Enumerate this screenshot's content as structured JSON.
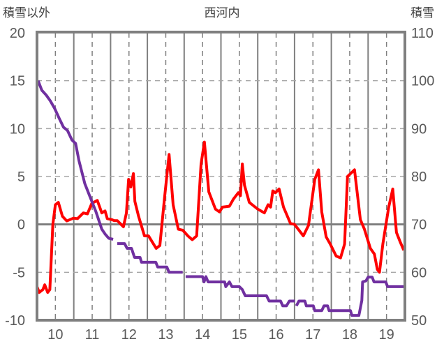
{
  "chart_data": {
    "type": "line",
    "title": "西河内",
    "ylabel_left": "積雪以外",
    "ylabel_right": "積雪",
    "xlim": [
      9.5,
      19.5
    ],
    "ylim_left": [
      -10,
      20
    ],
    "ylim_right": [
      50,
      110
    ],
    "x_ticks": [
      "10",
      "11",
      "12",
      "13",
      "14",
      "15",
      "16",
      "17",
      "18",
      "19"
    ],
    "x_tick_values": [
      10,
      11,
      12,
      13,
      14,
      15,
      16,
      17,
      18,
      19
    ],
    "y_ticks_left": [
      "20",
      "15",
      "10",
      "5",
      "0",
      "-5",
      "-10"
    ],
    "y_tick_left_values": [
      20,
      15,
      10,
      5,
      0,
      -5,
      -10
    ],
    "y_ticks_right": [
      "110",
      "100",
      "90",
      "80",
      "70",
      "60",
      "50"
    ],
    "y_tick_right_values": [
      110,
      100,
      90,
      80,
      70,
      60,
      50
    ],
    "grid": true,
    "series": [
      {
        "name": "積雪以外",
        "axis": "left",
        "color": "#ff0000",
        "points": [
          [
            9.5,
            -6.5
          ],
          [
            9.56,
            -7.1
          ],
          [
            9.66,
            -6.8
          ],
          [
            9.71,
            -6.3
          ],
          [
            9.79,
            -7.1
          ],
          [
            9.85,
            -6.8
          ],
          [
            9.93,
            0
          ],
          [
            10.0,
            2.05
          ],
          [
            10.08,
            2.3
          ],
          [
            10.19,
            0.85
          ],
          [
            10.31,
            0.36
          ],
          [
            10.49,
            0.65
          ],
          [
            10.6,
            0.6
          ],
          [
            10.76,
            1.2
          ],
          [
            10.87,
            1.1
          ],
          [
            10.99,
            2.2
          ],
          [
            11.14,
            2.5
          ],
          [
            11.26,
            1.2
          ],
          [
            11.35,
            1.4
          ],
          [
            11.41,
            0.6
          ],
          [
            11.53,
            0.5
          ],
          [
            11.6,
            0.4
          ],
          [
            11.68,
            0.4
          ],
          [
            11.85,
            -0.25
          ],
          [
            11.93,
            1.2
          ],
          [
            11.99,
            4.7
          ],
          [
            12.05,
            3.9
          ],
          [
            12.12,
            5.3
          ],
          [
            12.16,
            2.4
          ],
          [
            12.26,
            0.85
          ],
          [
            12.42,
            -1.2
          ],
          [
            12.53,
            -1.2
          ],
          [
            12.74,
            -2.5
          ],
          [
            12.84,
            -2.2
          ],
          [
            12.96,
            2.5
          ],
          [
            13.09,
            7.3
          ],
          [
            13.2,
            2.05
          ],
          [
            13.34,
            -0.5
          ],
          [
            13.46,
            -0.6
          ],
          [
            13.6,
            -1.2
          ],
          [
            13.72,
            -1.6
          ],
          [
            13.84,
            -1.2
          ],
          [
            13.96,
            6.3
          ],
          [
            14.05,
            8.6
          ],
          [
            14.17,
            3.4
          ],
          [
            14.35,
            1.6
          ],
          [
            14.46,
            1.3
          ],
          [
            14.54,
            1.8
          ],
          [
            14.73,
            1.9
          ],
          [
            14.84,
            2.65
          ],
          [
            14.97,
            3.3
          ],
          [
            15.03,
            3.0
          ],
          [
            15.08,
            6.3
          ],
          [
            15.14,
            4.1
          ],
          [
            15.27,
            2.3
          ],
          [
            15.35,
            2.05
          ],
          [
            15.5,
            1.6
          ],
          [
            15.68,
            1.2
          ],
          [
            15.78,
            2.05
          ],
          [
            15.85,
            1.8
          ],
          [
            15.91,
            3.5
          ],
          [
            15.98,
            3.3
          ],
          [
            16.08,
            3.7
          ],
          [
            16.2,
            1.8
          ],
          [
            16.39,
            0.1
          ],
          [
            16.5,
            0
          ],
          [
            16.62,
            -0.6
          ],
          [
            16.74,
            -1.2
          ],
          [
            16.88,
            -0.1
          ],
          [
            17.05,
            4.7
          ],
          [
            17.15,
            5.7
          ],
          [
            17.24,
            1.3
          ],
          [
            17.36,
            -1.3
          ],
          [
            17.47,
            -2.05
          ],
          [
            17.63,
            -3.3
          ],
          [
            17.75,
            -3.5
          ],
          [
            17.86,
            -2.05
          ],
          [
            17.94,
            5.0
          ],
          [
            18.13,
            5.7
          ],
          [
            18.29,
            0.5
          ],
          [
            18.4,
            -0.5
          ],
          [
            18.56,
            -2.5
          ],
          [
            18.67,
            -3.1
          ],
          [
            18.75,
            -4.7
          ],
          [
            18.81,
            -5.0
          ],
          [
            18.9,
            -2.05
          ],
          [
            19.06,
            1.8
          ],
          [
            19.17,
            3.7
          ],
          [
            19.27,
            -0.85
          ],
          [
            19.37,
            -1.8
          ],
          [
            19.47,
            -2.7
          ]
        ]
      },
      {
        "name": "積雪",
        "axis": "right",
        "color": "#7030a0",
        "points": [
          [
            9.53,
            100
          ],
          [
            9.63,
            98
          ],
          [
            9.75,
            97
          ],
          [
            9.86,
            95.8
          ],
          [
            9.98,
            94.2
          ],
          [
            10.1,
            92.2
          ],
          [
            10.22,
            90.3
          ],
          [
            10.33,
            89.6
          ],
          [
            10.45,
            87.6
          ],
          [
            10.55,
            86.9
          ],
          [
            10.64,
            83.3
          ],
          [
            10.72,
            80.9
          ],
          [
            10.8,
            78.5
          ],
          [
            10.95,
            75.6
          ],
          [
            11.1,
            72.7
          ],
          [
            11.26,
            69
          ],
          [
            11.35,
            68
          ],
          [
            11.45,
            67.1
          ],
          [
            11.57,
            66.9
          ],
          null,
          [
            11.68,
            66
          ],
          [
            11.88,
            66
          ],
          [
            11.95,
            65
          ],
          [
            12.07,
            65
          ],
          [
            12.15,
            63.1
          ],
          [
            12.3,
            63.1
          ],
          [
            12.34,
            62.1
          ],
          [
            12.73,
            62.1
          ],
          [
            12.78,
            61.1
          ],
          [
            13.03,
            61.1
          ],
          [
            13.09,
            60
          ],
          [
            13.46,
            60
          ],
          null,
          [
            13.54,
            59.1
          ],
          [
            14.0,
            59.1
          ],
          [
            14.04,
            58
          ],
          [
            14.09,
            59.1
          ],
          [
            14.15,
            58
          ],
          [
            14.6,
            58
          ],
          [
            14.63,
            57
          ],
          [
            14.73,
            58
          ],
          [
            14.8,
            57
          ],
          [
            15.0,
            57
          ],
          [
            15.08,
            56.4
          ],
          [
            15.16,
            55.1
          ],
          [
            15.74,
            55.1
          ],
          [
            15.81,
            54
          ],
          [
            16.12,
            54
          ],
          [
            16.18,
            53
          ],
          [
            16.28,
            53
          ],
          [
            16.36,
            54
          ],
          [
            16.51,
            54
          ],
          null,
          [
            16.55,
            53
          ],
          [
            16.62,
            54
          ],
          [
            16.78,
            54
          ],
          [
            16.82,
            53
          ],
          [
            17.01,
            53
          ],
          [
            17.05,
            52
          ],
          [
            17.24,
            52
          ],
          [
            17.3,
            53
          ],
          [
            17.4,
            53
          ],
          [
            17.44,
            52
          ],
          [
            18.02,
            52
          ],
          [
            18.06,
            51
          ],
          [
            18.25,
            51
          ],
          [
            18.33,
            54.1
          ],
          [
            18.35,
            58
          ],
          [
            18.44,
            58.2
          ],
          [
            18.5,
            59
          ],
          [
            18.61,
            59
          ],
          [
            18.66,
            58
          ],
          [
            18.98,
            58
          ],
          [
            19.03,
            57
          ],
          [
            19.48,
            57
          ]
        ]
      }
    ]
  }
}
